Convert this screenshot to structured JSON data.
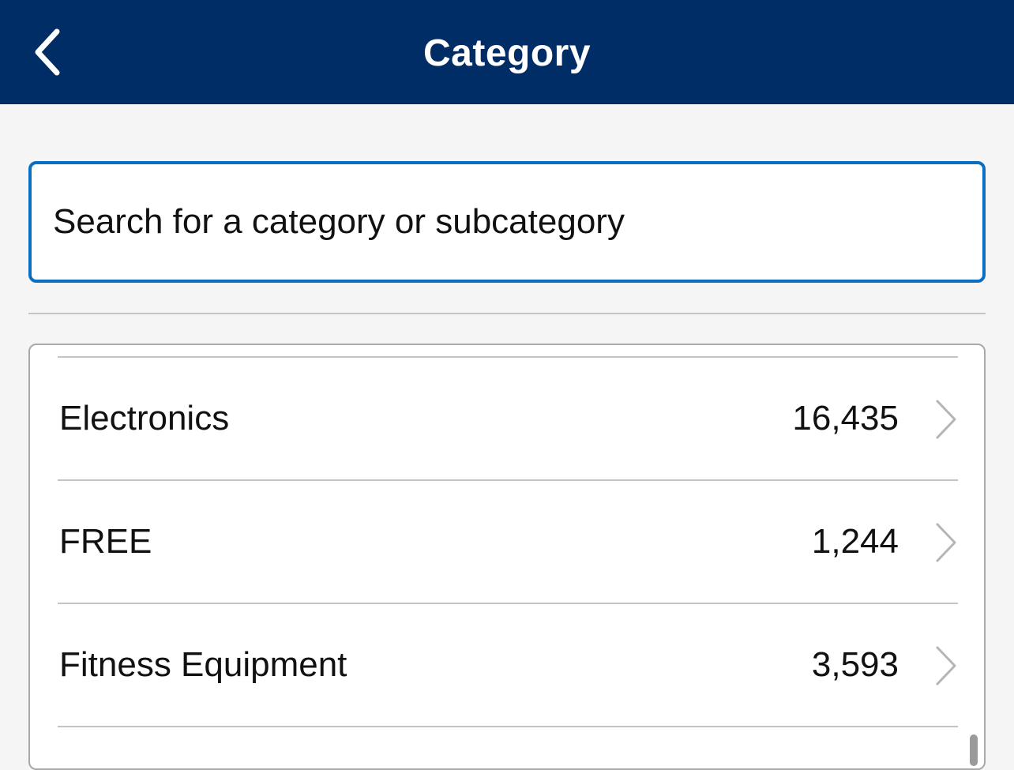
{
  "header": {
    "title": "Category",
    "back_icon": "chevron-left-icon",
    "background_color": "#002d66"
  },
  "search": {
    "placeholder": "Search for a category or subcategory",
    "value": "",
    "border_color": "#0a6fc2"
  },
  "categories": [
    {
      "label": "Electronics",
      "count": "16,435",
      "icon": "chevron-right-icon"
    },
    {
      "label": "FREE",
      "count": "1,244",
      "icon": "chevron-right-icon"
    },
    {
      "label": "Fitness Equipment",
      "count": "3,593",
      "icon": "chevron-right-icon"
    }
  ]
}
